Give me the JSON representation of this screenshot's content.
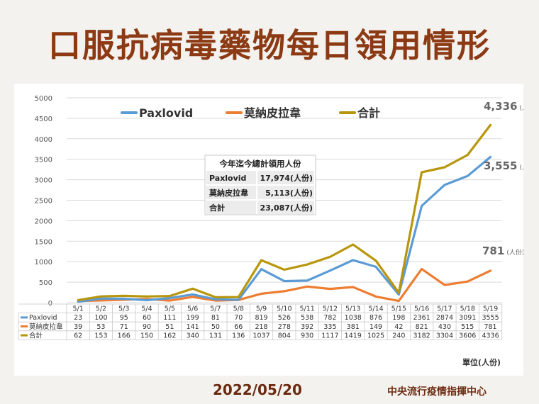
{
  "title": "口服抗病毒藥物每日領用情形",
  "footer": {
    "date": "2022/05/20",
    "org": "中央流行疫情指揮中心"
  },
  "summary": {
    "header": "今年迄今總計領用人份",
    "rows": [
      {
        "label": "Paxlovid",
        "value": "17,974(人份)"
      },
      {
        "label": "莫納皮拉韋",
        "value": "5,113(人份)"
      },
      {
        "label": "合計",
        "value": "23,087(人份)"
      }
    ]
  },
  "unit_label": "單位(人份)",
  "end_labels": {
    "total": {
      "value": "4,336",
      "unit": "人份"
    },
    "paxlovid": {
      "value": "3,555",
      "unit": "人份"
    },
    "molnupiravir": {
      "value": "781",
      "unit": "人份"
    }
  },
  "colors": {
    "paxlovid": "#5b9bd5",
    "molnupiravir": "#ed7d31",
    "total": "#b8960c",
    "title": "#8b3a14",
    "grid": "#d9d9d9"
  },
  "chart_data": {
    "type": "line",
    "title": "",
    "xlabel": "",
    "ylabel": "",
    "ylim": [
      0,
      5000
    ],
    "yticks": [
      0,
      500,
      1000,
      1500,
      2000,
      2500,
      3000,
      3500,
      4000,
      4500,
      5000
    ],
    "grid": true,
    "legend_position": "top",
    "categories": [
      "5/1",
      "5/2",
      "5/3",
      "5/4",
      "5/5",
      "5/6",
      "5/7",
      "5/8",
      "5/9",
      "5/10",
      "5/11",
      "5/12",
      "5/13",
      "5/14",
      "5/15",
      "5/16",
      "5/17",
      "5/18",
      "5/19"
    ],
    "series": [
      {
        "key": "paxlovid",
        "name": "Paxlovid",
        "table_name": "Paxlovid",
        "values": [
          23,
          100,
          95,
          60,
          111,
          199,
          81,
          70,
          819,
          526,
          538,
          782,
          1038,
          876,
          198,
          2361,
          2874,
          3091,
          3555
        ]
      },
      {
        "key": "molnupiravir",
        "name": "莫納皮拉韋",
        "table_name": "莫納皮拉韋",
        "values": [
          39,
          53,
          71,
          90,
          51,
          141,
          50,
          66,
          218,
          278,
          392,
          335,
          381,
          149,
          42,
          821,
          430,
          515,
          781
        ]
      },
      {
        "key": "total",
        "name": "合計",
        "table_name": "合計",
        "values": [
          62,
          153,
          166,
          150,
          162,
          340,
          131,
          136,
          1037,
          804,
          930,
          1117,
          1419,
          1025,
          240,
          3182,
          3304,
          3606,
          4336
        ]
      }
    ]
  }
}
